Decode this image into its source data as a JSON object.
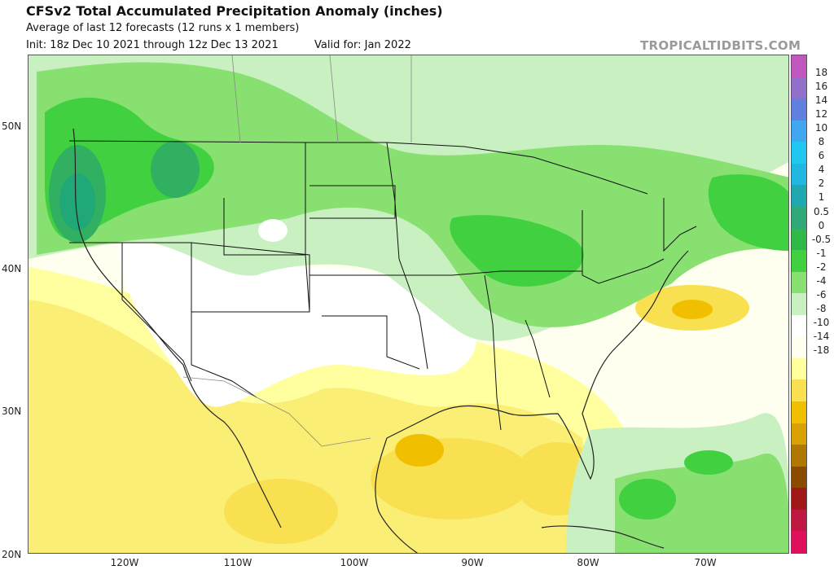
{
  "header": {
    "title": "CFSv2 Total Accumulated Precipitation Anomaly (inches)",
    "subtitle": "Average of last 12 forecasts (12 runs x 1 members)",
    "init": "Init: 18z Dec 10 2021 through 12z Dec 13 2021",
    "valid": "Valid for: Jan 2022",
    "brand": "TROPICALTIDBITS.COM"
  },
  "axes": {
    "lat_labels": [
      "50N",
      "40N",
      "30N",
      "20N"
    ],
    "lon_labels": [
      "120W",
      "110W",
      "100W",
      "90W",
      "80W",
      "70W"
    ]
  },
  "colorbar": {
    "labels": [
      "18",
      "16",
      "14",
      "12",
      "10",
      "8",
      "6",
      "4",
      "2",
      "1",
      "0.5",
      "0",
      "-0.5",
      "-1",
      "-2",
      "-4",
      "-6",
      "-8",
      "-10",
      "-14",
      "-18"
    ],
    "colors": [
      "#c058c0",
      "#9070c8",
      "#6080e0",
      "#40a8f0",
      "#20c8f0",
      "#20b8e0",
      "#20a8b0",
      "#30a878",
      "#30b848",
      "#40d040",
      "#88e070",
      "#c8f0c0",
      "#ffffff",
      "#fffff0",
      "#ffffa0",
      "#f8e050",
      "#f0c000",
      "#d8a000",
      "#b07800",
      "#8a4a00",
      "#a01818",
      "#c01840",
      "#e0105c"
    ]
  },
  "map": {
    "field": "Total accumulated precipitation anomaly",
    "colors": {
      "green_light": "#c8f0c0",
      "green_mid": "#88e070",
      "green_bright": "#40d040",
      "green_dark": "#30b060",
      "teal": "#20a878",
      "yellow_light": "#fffff0",
      "yellow_pale": "#ffffa0",
      "yellow_mid": "#f8e050",
      "orange": "#f0c000",
      "state_line": "#111111",
      "country_line": "#888888"
    }
  }
}
